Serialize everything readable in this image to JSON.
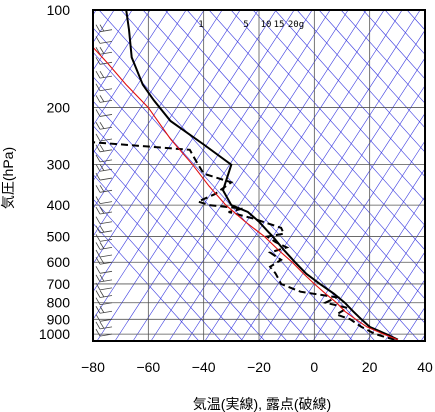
{
  "chart_data": {
    "type": "line",
    "xlabel": "気温(実線), 露点(破線)",
    "ylabel": "気圧(hPa)",
    "xlim": [
      -80,
      40
    ],
    "ylim": [
      1050,
      100
    ],
    "y_scale": "log",
    "x_ticks": [
      -80,
      -60,
      -40,
      -20,
      0,
      20,
      40
    ],
    "y_ticks": [
      100,
      200,
      300,
      400,
      500,
      600,
      700,
      800,
      900,
      1000
    ],
    "grid": true,
    "mixing_ratio_labels": [
      "1",
      "5",
      "10",
      "15",
      "20g"
    ],
    "series": [
      {
        "role": "temperature",
        "style": "solid",
        "color": "#000000",
        "points": [
          [
            30.2,
            1040
          ],
          [
            26,
            1000
          ],
          [
            20,
            950
          ],
          [
            17,
            900
          ],
          [
            14,
            850
          ],
          [
            11,
            800
          ],
          [
            7,
            750
          ],
          [
            2,
            700
          ],
          [
            -3,
            650
          ],
          [
            -7,
            600
          ],
          [
            -11,
            550
          ],
          [
            -15,
            500
          ],
          [
            -17,
            480
          ],
          [
            -20,
            450
          ],
          [
            -24,
            420
          ],
          [
            -30,
            400
          ],
          [
            -33,
            360
          ],
          [
            -30,
            300
          ],
          [
            -40,
            260
          ],
          [
            -52,
            220
          ],
          [
            -58,
            190
          ],
          [
            -62,
            170
          ],
          [
            -66,
            140
          ],
          [
            -67,
            115
          ],
          [
            -68,
            100
          ]
        ]
      },
      {
        "role": "dewpoint",
        "style": "dashed",
        "color": "#000000",
        "points": [
          [
            29,
            1040
          ],
          [
            22,
            1000
          ],
          [
            17,
            950
          ],
          [
            13,
            900
          ],
          [
            8,
            870
          ],
          [
            12,
            830
          ],
          [
            4,
            800
          ],
          [
            8,
            770
          ],
          [
            -5,
            740
          ],
          [
            -12,
            700
          ],
          [
            -14,
            650
          ],
          [
            -16,
            620
          ],
          [
            -12,
            590
          ],
          [
            -16,
            560
          ],
          [
            -10,
            540
          ],
          [
            -14,
            520
          ],
          [
            -17,
            500
          ],
          [
            -11,
            490
          ],
          [
            -12,
            470
          ],
          [
            -22,
            440
          ],
          [
            -31,
            420
          ],
          [
            -26,
            410
          ],
          [
            -38,
            400
          ],
          [
            -42,
            390
          ],
          [
            -36,
            370
          ],
          [
            -30,
            340
          ],
          [
            -40,
            320
          ],
          [
            -43,
            290
          ],
          [
            -45,
            270
          ],
          [
            -82,
            255
          ]
        ]
      },
      {
        "role": "reference-curve",
        "style": "solid",
        "color": "#e01010",
        "points": [
          [
            30.2,
            1040
          ],
          [
            25,
            1000
          ],
          [
            19,
            950
          ],
          [
            15,
            900
          ],
          [
            11,
            850
          ],
          [
            8,
            800
          ],
          [
            4,
            750
          ],
          [
            0,
            700
          ],
          [
            -4,
            650
          ],
          [
            -8,
            600
          ],
          [
            -13,
            550
          ],
          [
            -18,
            500
          ],
          [
            -25,
            450
          ],
          [
            -32,
            400
          ],
          [
            -38,
            350
          ],
          [
            -44,
            300
          ],
          [
            -52,
            250
          ],
          [
            -60,
            200
          ],
          [
            -68,
            170
          ],
          [
            -75,
            145
          ],
          [
            -82,
            125
          ]
        ]
      }
    ]
  }
}
